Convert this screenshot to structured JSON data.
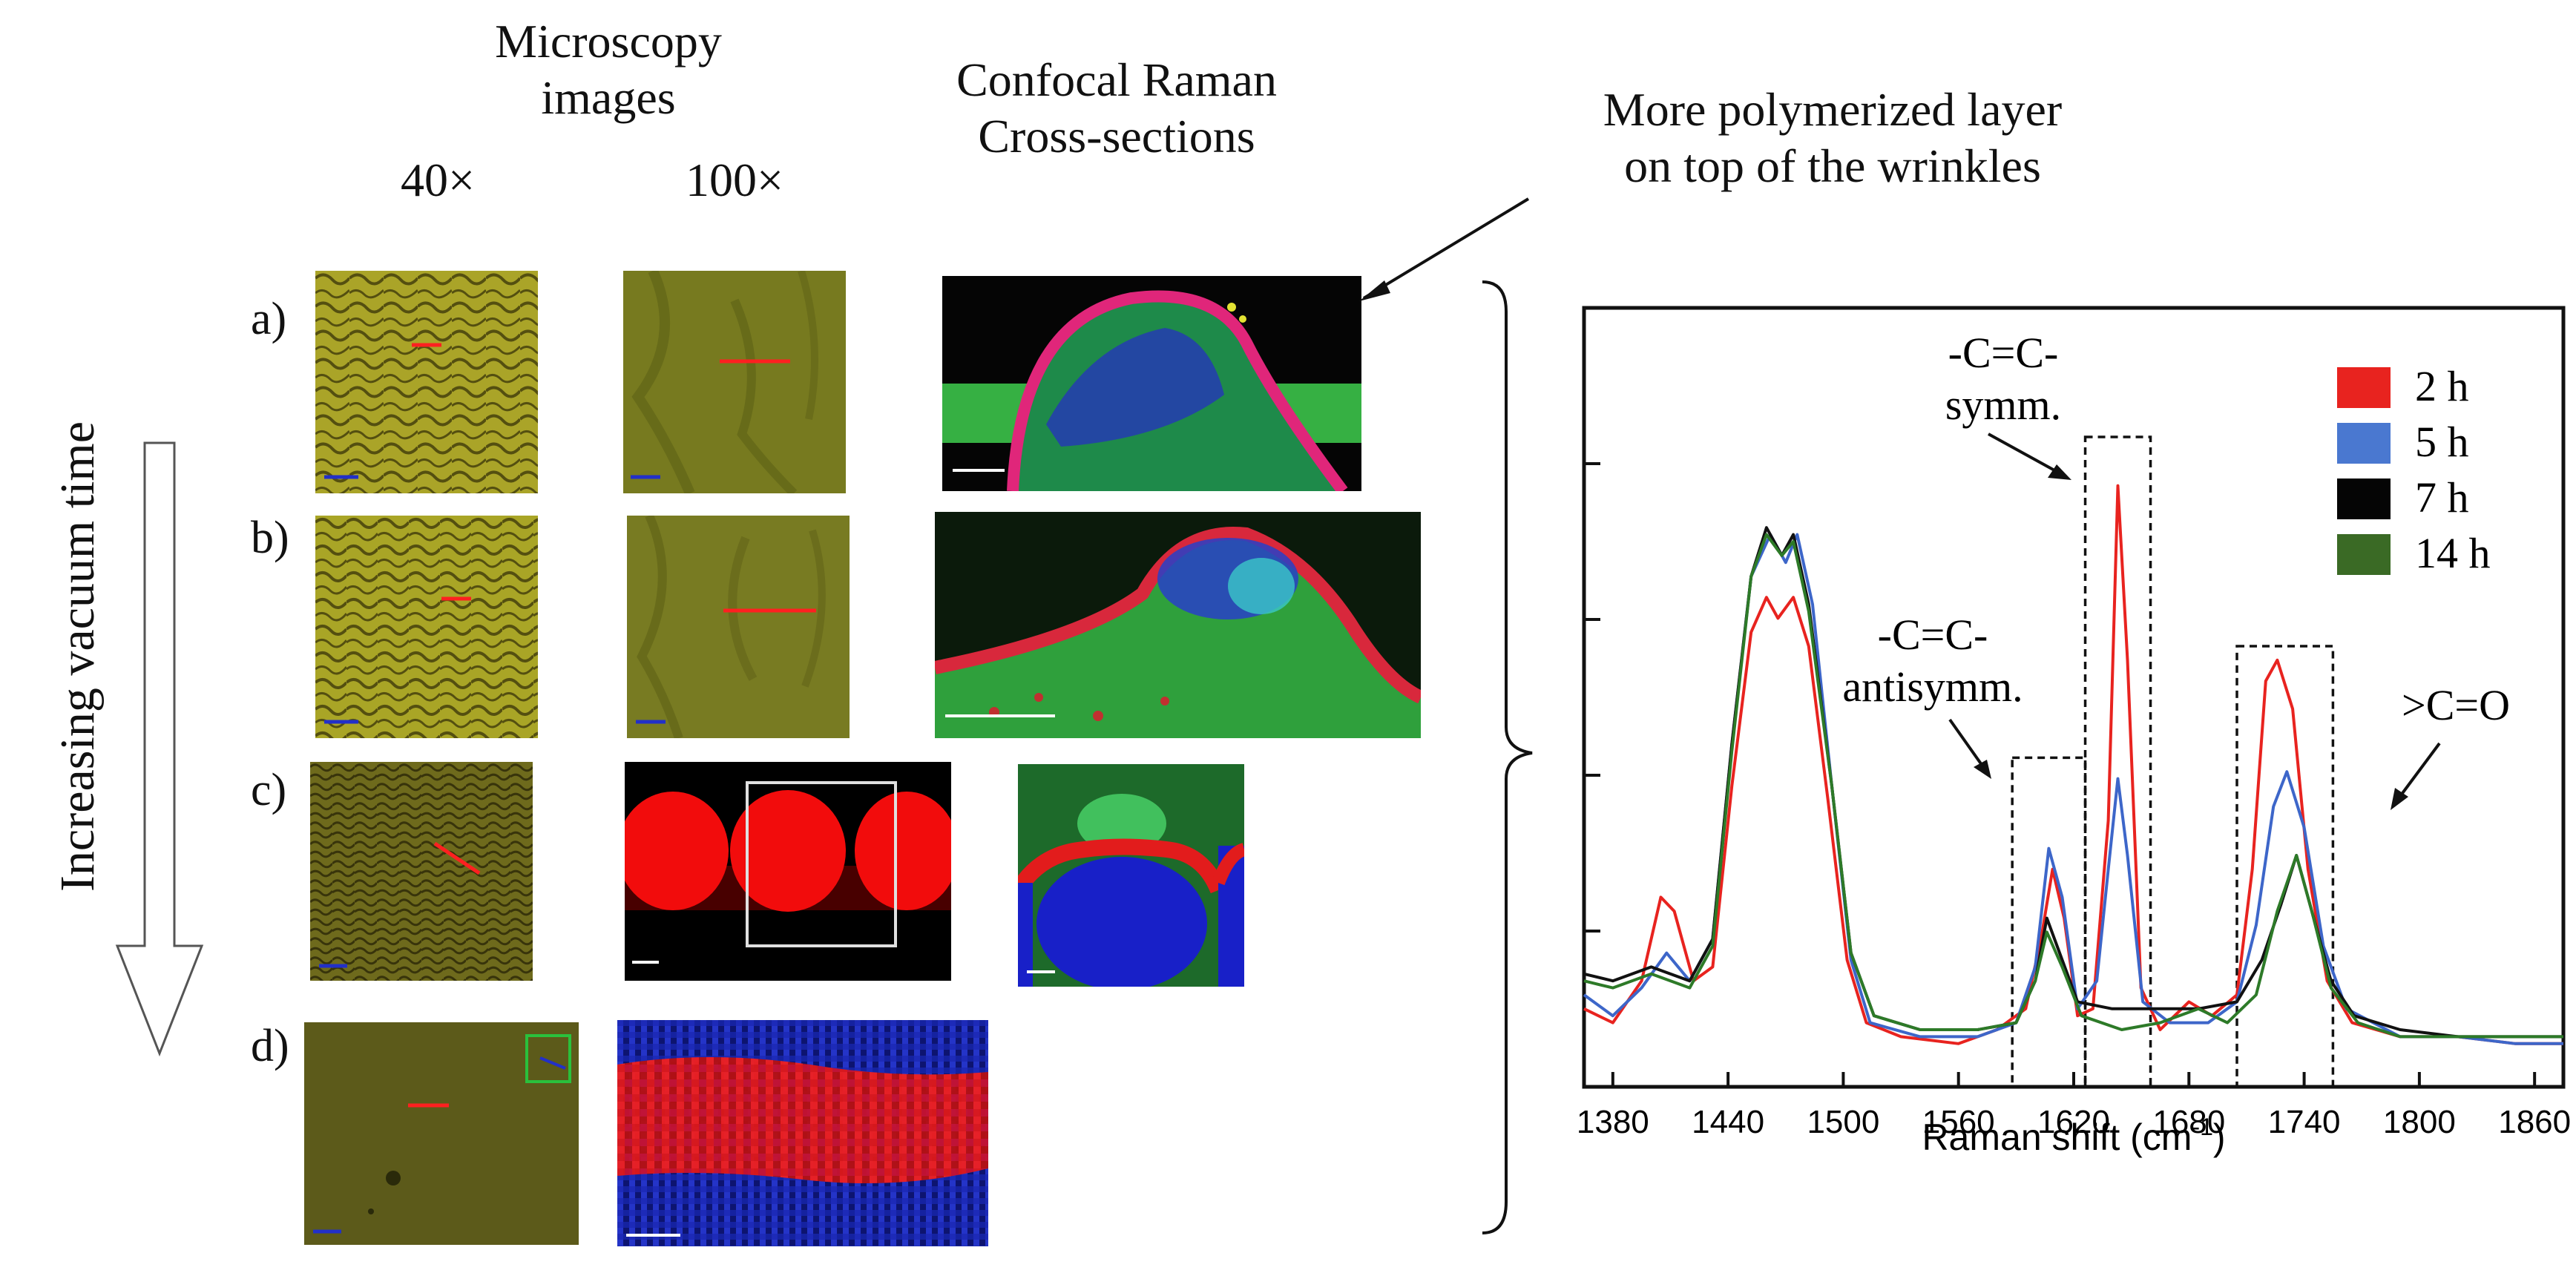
{
  "figure": {
    "headers": {
      "microscopy_line1": "Microscopy",
      "microscopy_line2": "images",
      "mag_40": "40×",
      "mag_100": "100×",
      "raman_line1": "Confocal Raman",
      "raman_line2": "Cross-sections",
      "annotation_line1": "More polymerized layer",
      "annotation_line2": "on top of the wrinkles"
    },
    "side_label": "Increasing vacuum time",
    "rows": [
      {
        "label": "a)"
      },
      {
        "label": "b)"
      },
      {
        "label": "c)"
      },
      {
        "label": "d)"
      }
    ]
  },
  "chart_data": {
    "type": "line",
    "xlabel": "Raman shift (cm",
    "xlabel_sup": "-1",
    "xlabel_close": ")",
    "ylabel": "",
    "xlim": [
      1365,
      1875
    ],
    "ylim": [
      0,
      1.0
    ],
    "xticks": [
      1380,
      1440,
      1500,
      1560,
      1620,
      1680,
      1740,
      1800,
      1860
    ],
    "series": [
      {
        "name": "2 h",
        "color": "#e8231f",
        "points": [
          [
            1365,
            0.08
          ],
          [
            1380,
            0.06
          ],
          [
            1395,
            0.12
          ],
          [
            1405,
            0.24
          ],
          [
            1412,
            0.22
          ],
          [
            1422,
            0.12
          ],
          [
            1432,
            0.14
          ],
          [
            1442,
            0.4
          ],
          [
            1452,
            0.62
          ],
          [
            1460,
            0.67
          ],
          [
            1466,
            0.64
          ],
          [
            1474,
            0.67
          ],
          [
            1482,
            0.6
          ],
          [
            1492,
            0.38
          ],
          [
            1502,
            0.15
          ],
          [
            1512,
            0.06
          ],
          [
            1530,
            0.04
          ],
          [
            1560,
            0.03
          ],
          [
            1580,
            0.05
          ],
          [
            1595,
            0.08
          ],
          [
            1603,
            0.18
          ],
          [
            1609,
            0.28
          ],
          [
            1615,
            0.21
          ],
          [
            1622,
            0.07
          ],
          [
            1630,
            0.08
          ],
          [
            1638,
            0.35
          ],
          [
            1643,
            0.83
          ],
          [
            1648,
            0.58
          ],
          [
            1655,
            0.11
          ],
          [
            1665,
            0.05
          ],
          [
            1680,
            0.09
          ],
          [
            1692,
            0.07
          ],
          [
            1705,
            0.1
          ],
          [
            1713,
            0.28
          ],
          [
            1720,
            0.55
          ],
          [
            1726,
            0.58
          ],
          [
            1734,
            0.51
          ],
          [
            1742,
            0.28
          ],
          [
            1752,
            0.12
          ],
          [
            1765,
            0.06
          ],
          [
            1790,
            0.04
          ],
          [
            1820,
            0.04
          ],
          [
            1850,
            0.03
          ],
          [
            1875,
            0.03
          ]
        ]
      },
      {
        "name": "5 h",
        "color": "#3d66c9",
        "points": [
          [
            1365,
            0.1
          ],
          [
            1380,
            0.07
          ],
          [
            1395,
            0.11
          ],
          [
            1408,
            0.16
          ],
          [
            1420,
            0.12
          ],
          [
            1432,
            0.18
          ],
          [
            1442,
            0.46
          ],
          [
            1452,
            0.7
          ],
          [
            1462,
            0.76
          ],
          [
            1470,
            0.72
          ],
          [
            1476,
            0.76
          ],
          [
            1484,
            0.66
          ],
          [
            1494,
            0.4
          ],
          [
            1504,
            0.15
          ],
          [
            1514,
            0.06
          ],
          [
            1540,
            0.04
          ],
          [
            1570,
            0.04
          ],
          [
            1590,
            0.06
          ],
          [
            1600,
            0.14
          ],
          [
            1607,
            0.31
          ],
          [
            1614,
            0.24
          ],
          [
            1622,
            0.08
          ],
          [
            1632,
            0.12
          ],
          [
            1638,
            0.28
          ],
          [
            1643,
            0.41
          ],
          [
            1648,
            0.3
          ],
          [
            1656,
            0.09
          ],
          [
            1670,
            0.06
          ],
          [
            1690,
            0.06
          ],
          [
            1705,
            0.09
          ],
          [
            1715,
            0.2
          ],
          [
            1724,
            0.37
          ],
          [
            1731,
            0.42
          ],
          [
            1740,
            0.34
          ],
          [
            1750,
            0.17
          ],
          [
            1762,
            0.08
          ],
          [
            1790,
            0.04
          ],
          [
            1820,
            0.04
          ],
          [
            1850,
            0.03
          ],
          [
            1875,
            0.03
          ]
        ]
      },
      {
        "name": "7 h",
        "color": "#111111",
        "points": [
          [
            1365,
            0.13
          ],
          [
            1380,
            0.12
          ],
          [
            1400,
            0.14
          ],
          [
            1420,
            0.12
          ],
          [
            1432,
            0.18
          ],
          [
            1442,
            0.46
          ],
          [
            1452,
            0.7
          ],
          [
            1460,
            0.77
          ],
          [
            1468,
            0.73
          ],
          [
            1474,
            0.76
          ],
          [
            1482,
            0.66
          ],
          [
            1494,
            0.4
          ],
          [
            1504,
            0.16
          ],
          [
            1516,
            0.07
          ],
          [
            1540,
            0.05
          ],
          [
            1570,
            0.05
          ],
          [
            1590,
            0.06
          ],
          [
            1600,
            0.12
          ],
          [
            1606,
            0.21
          ],
          [
            1614,
            0.15
          ],
          [
            1622,
            0.09
          ],
          [
            1640,
            0.08
          ],
          [
            1665,
            0.08
          ],
          [
            1685,
            0.08
          ],
          [
            1705,
            0.09
          ],
          [
            1718,
            0.15
          ],
          [
            1728,
            0.23
          ],
          [
            1736,
            0.3
          ],
          [
            1744,
            0.22
          ],
          [
            1754,
            0.12
          ],
          [
            1766,
            0.07
          ],
          [
            1790,
            0.05
          ],
          [
            1820,
            0.04
          ],
          [
            1850,
            0.04
          ],
          [
            1875,
            0.04
          ]
        ]
      },
      {
        "name": "14 h",
        "color": "#2d7a28",
        "points": [
          [
            1365,
            0.12
          ],
          [
            1380,
            0.11
          ],
          [
            1400,
            0.13
          ],
          [
            1420,
            0.11
          ],
          [
            1432,
            0.17
          ],
          [
            1442,
            0.45
          ],
          [
            1452,
            0.7
          ],
          [
            1460,
            0.76
          ],
          [
            1468,
            0.73
          ],
          [
            1474,
            0.75
          ],
          [
            1482,
            0.65
          ],
          [
            1494,
            0.4
          ],
          [
            1504,
            0.16
          ],
          [
            1516,
            0.07
          ],
          [
            1540,
            0.05
          ],
          [
            1570,
            0.05
          ],
          [
            1590,
            0.06
          ],
          [
            1600,
            0.12
          ],
          [
            1606,
            0.19
          ],
          [
            1614,
            0.14
          ],
          [
            1624,
            0.07
          ],
          [
            1645,
            0.05
          ],
          [
            1665,
            0.06
          ],
          [
            1685,
            0.08
          ],
          [
            1700,
            0.06
          ],
          [
            1715,
            0.1
          ],
          [
            1726,
            0.22
          ],
          [
            1736,
            0.3
          ],
          [
            1744,
            0.22
          ],
          [
            1754,
            0.11
          ],
          [
            1768,
            0.06
          ],
          [
            1790,
            0.04
          ],
          [
            1820,
            0.04
          ],
          [
            1850,
            0.04
          ],
          [
            1875,
            0.04
          ]
        ]
      }
    ],
    "annotations": [
      {
        "text_line1": "-C=C-",
        "text_line2": "symm.",
        "x": 1643
      },
      {
        "text_line1": "-C=C-",
        "text_line2": "antisymm.",
        "x": 1607
      },
      {
        "text": ">C=O",
        "x": 1728
      }
    ],
    "boxes": [
      {
        "x0": 1588,
        "x1": 1626,
        "y0": 0,
        "y1": 0.44
      },
      {
        "x0": 1626,
        "x1": 1660,
        "y0": 0,
        "y1": 0.9
      },
      {
        "x0": 1705,
        "x1": 1755,
        "y0": 0,
        "y1": 0.6
      }
    ]
  }
}
